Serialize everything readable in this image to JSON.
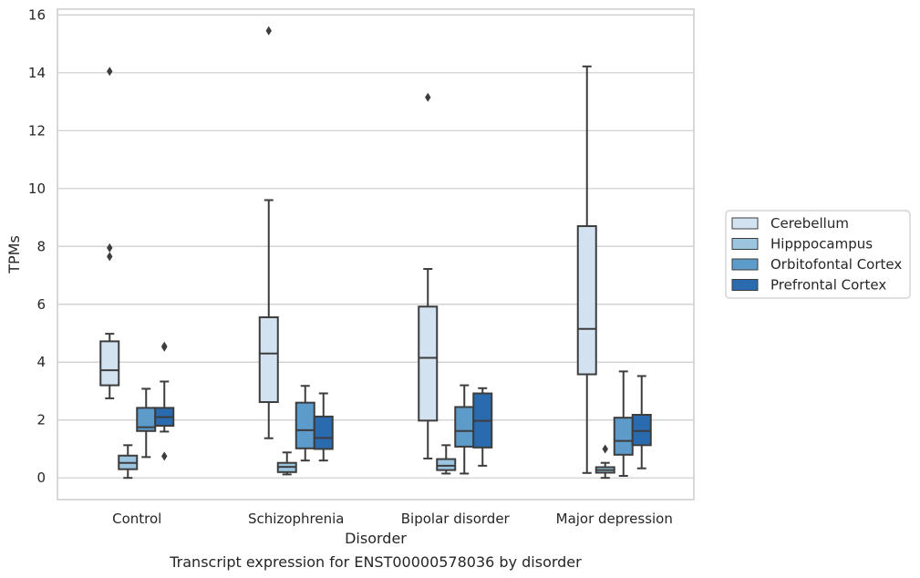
{
  "caption": "Transcript expression for ENST00000578036 by disorder",
  "chart_data": {
    "type": "box",
    "xlabel": "Disorder",
    "ylabel": "TPMs",
    "ylim": [
      -0.75,
      16.2
    ],
    "yticks": [
      0,
      2,
      4,
      6,
      8,
      10,
      12,
      14,
      16
    ],
    "grid": true,
    "legend_position": "right",
    "categories": [
      "Control",
      "Schizophrenia",
      "Bipolar disorder",
      "Major depression"
    ],
    "series": [
      {
        "name": "Cerebellum",
        "color": "#d3e2f1",
        "boxes": [
          {
            "whislo": 2.75,
            "q1": 3.2,
            "med": 3.72,
            "q3": 4.72,
            "whishi": 4.98,
            "fliers": [
              14.05,
              7.95,
              7.65
            ]
          },
          {
            "whislo": 1.37,
            "q1": 2.62,
            "med": 4.3,
            "q3": 5.55,
            "whishi": 9.6,
            "fliers": [
              15.45
            ]
          },
          {
            "whislo": 0.67,
            "q1": 1.98,
            "med": 4.15,
            "q3": 5.92,
            "whishi": 7.22,
            "fliers": [
              13.15
            ]
          },
          {
            "whislo": 0.17,
            "q1": 3.58,
            "med": 5.15,
            "q3": 8.7,
            "whishi": 14.22,
            "fliers": []
          }
        ]
      },
      {
        "name": "Hipppocampus",
        "color": "#9bc4de",
        "boxes": [
          {
            "whislo": 0.0,
            "q1": 0.3,
            "med": 0.52,
            "q3": 0.77,
            "whishi": 1.13,
            "fliers": []
          },
          {
            "whislo": 0.12,
            "q1": 0.2,
            "med": 0.38,
            "q3": 0.52,
            "whishi": 0.88,
            "fliers": []
          },
          {
            "whislo": 0.15,
            "q1": 0.27,
            "med": 0.42,
            "q3": 0.65,
            "whishi": 1.13,
            "fliers": []
          },
          {
            "whislo": 0.0,
            "q1": 0.18,
            "med": 0.27,
            "q3": 0.37,
            "whishi": 0.52,
            "fliers": [
              1.0
            ]
          }
        ]
      },
      {
        "name": "Orbitofontal Cortex",
        "color": "#5c9bca",
        "boxes": [
          {
            "whislo": 0.72,
            "q1": 1.62,
            "med": 1.75,
            "q3": 2.42,
            "whishi": 3.08,
            "fliers": []
          },
          {
            "whislo": 0.6,
            "q1": 1.02,
            "med": 1.65,
            "q3": 2.6,
            "whishi": 3.18,
            "fliers": []
          },
          {
            "whislo": 0.15,
            "q1": 1.08,
            "med": 1.62,
            "q3": 2.45,
            "whishi": 3.2,
            "fliers": []
          },
          {
            "whislo": 0.07,
            "q1": 0.8,
            "med": 1.28,
            "q3": 2.08,
            "whishi": 3.68,
            "fliers": []
          }
        ]
      },
      {
        "name": "Prefrontal Cortex",
        "color": "#2a6aaf",
        "boxes": [
          {
            "whislo": 1.6,
            "q1": 1.8,
            "med": 2.1,
            "q3": 2.42,
            "whishi": 3.33,
            "fliers": [
              4.52,
              4.55,
              0.75
            ]
          },
          {
            "whislo": 0.6,
            "q1": 1.0,
            "med": 1.38,
            "q3": 2.12,
            "whishi": 2.92,
            "fliers": []
          },
          {
            "whislo": 0.42,
            "q1": 1.05,
            "med": 1.97,
            "q3": 2.92,
            "whishi": 3.1,
            "fliers": []
          },
          {
            "whislo": 0.33,
            "q1": 1.13,
            "med": 1.62,
            "q3": 2.18,
            "whishi": 3.52,
            "fliers": []
          }
        ]
      }
    ]
  }
}
